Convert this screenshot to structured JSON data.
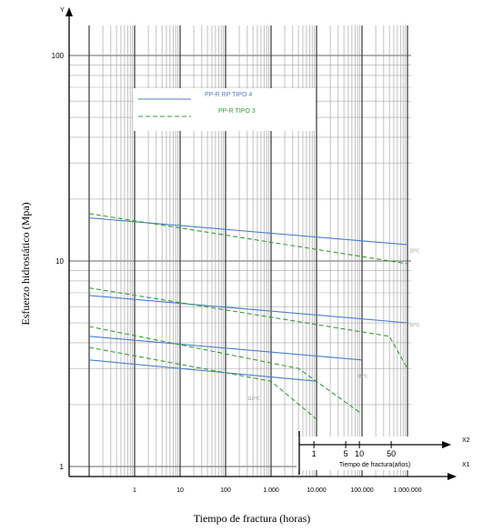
{
  "chart_data": {
    "type": "line",
    "xlabel": "Tiempo de fractura (horas)",
    "ylabel": "Esfuerzo hidrostático (Mpa)",
    "x_scale": "log",
    "y_scale": "log",
    "xlim": [
      0.1,
      1000000
    ],
    "ylim": [
      1,
      100
    ],
    "x_ticks": [
      {
        "value": 1,
        "label": "1"
      },
      {
        "value": 10,
        "label": "10"
      },
      {
        "value": 100,
        "label": "100"
      },
      {
        "value": 1000,
        "label": "1.000"
      },
      {
        "value": 10000,
        "label": "10.000"
      },
      {
        "value": 100000,
        "label": "100.000"
      },
      {
        "value": 1000000,
        "label": "1.000.000"
      }
    ],
    "y_ticks": [
      {
        "value": 1,
        "label": "1"
      },
      {
        "value": 10,
        "label": "10"
      },
      {
        "value": 100,
        "label": "100"
      }
    ],
    "x_axis_label_letter": "X1",
    "y_axis_label_letter": "Y",
    "grid": true,
    "legend_position": "top-center",
    "series": [
      {
        "name": "PP-R RP TIPO 4",
        "color": "#4a7fc9",
        "dash": "solid",
        "curves": [
          [
            [
              0.1,
              16.2
            ],
            [
              1000000,
              12.0
            ]
          ],
          [
            [
              0.1,
              6.8
            ],
            [
              1000000,
              5.0
            ]
          ],
          [
            [
              0.1,
              4.3
            ],
            [
              100000,
              3.3
            ]
          ],
          [
            [
              0.1,
              3.3
            ],
            [
              10000,
              2.6
            ]
          ]
        ]
      },
      {
        "name": "PP-R TIPO 3",
        "color": "#3a9a3a",
        "dash": "dashed",
        "curves": [
          [
            [
              0.1,
              17.0
            ],
            [
              1000000,
              9.7
            ]
          ],
          [
            [
              0.1,
              7.4
            ],
            [
              400000,
              4.3
            ],
            [
              1000000,
              3.0
            ]
          ],
          [
            [
              0.1,
              4.8
            ],
            [
              4000,
              3.0
            ],
            [
              100000,
              1.8
            ]
          ],
          [
            [
              0.1,
              3.8
            ],
            [
              1000,
              2.6
            ],
            [
              10000,
              1.7
            ]
          ]
        ]
      }
    ],
    "annotations": [
      {
        "text": "20°C",
        "x": 1100000,
        "y": 11.0
      },
      {
        "text": "60°C",
        "x": 1100000,
        "y": 4.8
      },
      {
        "text": "95°C",
        "x": 80000,
        "y": 2.7
      },
      {
        "text": "110°C",
        "x": 300,
        "y": 2.1
      }
    ],
    "inset_axis": {
      "label": "Tiempo de fractura(años)",
      "label_letter": "X2",
      "ticks": [
        {
          "value": 1,
          "label": "1"
        },
        {
          "value": 5,
          "label": "5"
        },
        {
          "value": 10,
          "label": "10"
        },
        {
          "value": 50,
          "label": "50"
        }
      ]
    }
  }
}
